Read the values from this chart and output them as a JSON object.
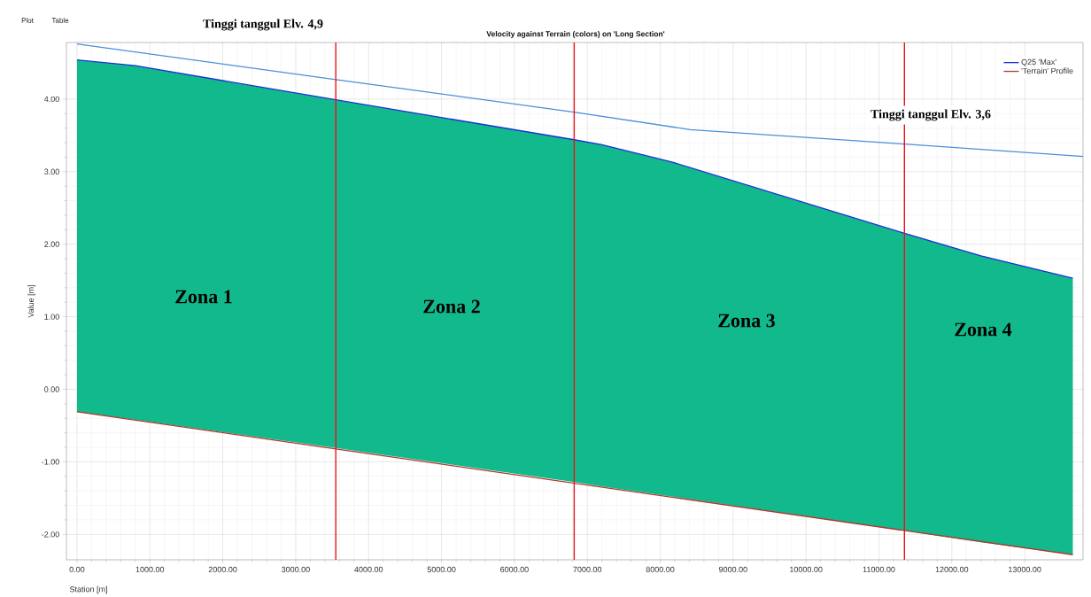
{
  "chart_data": {
    "type": "line",
    "title": "Velocity against Terrain (colors) on 'Long Section'",
    "xlabel": "Station [m]",
    "ylabel": "Value [m]",
    "xlim": [
      -145,
      13800
    ],
    "ylim": [
      -2.35,
      4.78
    ],
    "xticks": [
      {
        "value": 0,
        "label": "0.00"
      },
      {
        "value": 1000,
        "label": "1000.00"
      },
      {
        "value": 2000,
        "label": "2000.00"
      },
      {
        "value": 3000,
        "label": "3000.00"
      },
      {
        "value": 4000,
        "label": "4000.00"
      },
      {
        "value": 5000,
        "label": "5000.00"
      },
      {
        "value": 6000,
        "label": "6000.00"
      },
      {
        "value": 7000,
        "label": "7000.00"
      },
      {
        "value": 8000,
        "label": "8000.00"
      },
      {
        "value": 9000,
        "label": "9000.00"
      },
      {
        "value": 10000,
        "label": "10000.00"
      },
      {
        "value": 11000,
        "label": "11000.00"
      },
      {
        "value": 12000,
        "label": "12000.00"
      },
      {
        "value": 13000,
        "label": "13000.00"
      }
    ],
    "yticks": [
      {
        "value": -2,
        "label": "-2.00"
      },
      {
        "value": -1,
        "label": "-1.00"
      },
      {
        "value": 0,
        "label": "0.00"
      },
      {
        "value": 1,
        "label": "1.00"
      },
      {
        "value": 2,
        "label": "2.00"
      },
      {
        "value": 3,
        "label": "3.00"
      },
      {
        "value": 4,
        "label": "4.00"
      }
    ],
    "grid": true,
    "legend": "top right",
    "series": [
      {
        "color": "#4a8fd8",
        "x": [
          0,
          3550,
          6820,
          8410,
          11350,
          13800
        ],
        "values": [
          4.76,
          4.27,
          3.82,
          3.58,
          3.38,
          3.21
        ]
      },
      {
        "name": "Q25 'Max'",
        "color": "#1a2fd6",
        "x": [
          0,
          800,
          3550,
          6820,
          7200,
          8170,
          11350,
          12400,
          13660
        ],
        "values": [
          4.54,
          4.46,
          3.99,
          3.44,
          3.37,
          3.13,
          2.15,
          1.84,
          1.53
        ],
        "lower": [
          -0.31,
          -0.42,
          -0.81,
          -1.28,
          -1.34,
          -1.48,
          -1.95,
          -2.11,
          -2.28
        ],
        "upper": [
          4.54,
          4.46,
          3.99,
          3.44,
          3.37,
          3.13,
          2.15,
          1.84,
          1.53
        ]
      },
      {
        "name": "'Terrain' Profile",
        "color": "#b03a2e",
        "x": [
          0,
          13660
        ],
        "values": [
          -0.31,
          -2.28
        ]
      }
    ],
    "ref_lines": [
      {
        "axis": "x",
        "value": 3550,
        "color": "#e8141c"
      },
      {
        "axis": "x",
        "value": 6820,
        "color": "#e8141c"
      },
      {
        "axis": "x",
        "value": 11350,
        "color": "#e8141c"
      }
    ],
    "annotations": [
      "Plot",
      "Table",
      "Tinggi tanggul Elv. 4,9",
      "Tinggi tanggul Elv. 3,6",
      "Zona 1",
      "Zona 2",
      "Zona 3",
      "Zona 4"
    ]
  }
}
